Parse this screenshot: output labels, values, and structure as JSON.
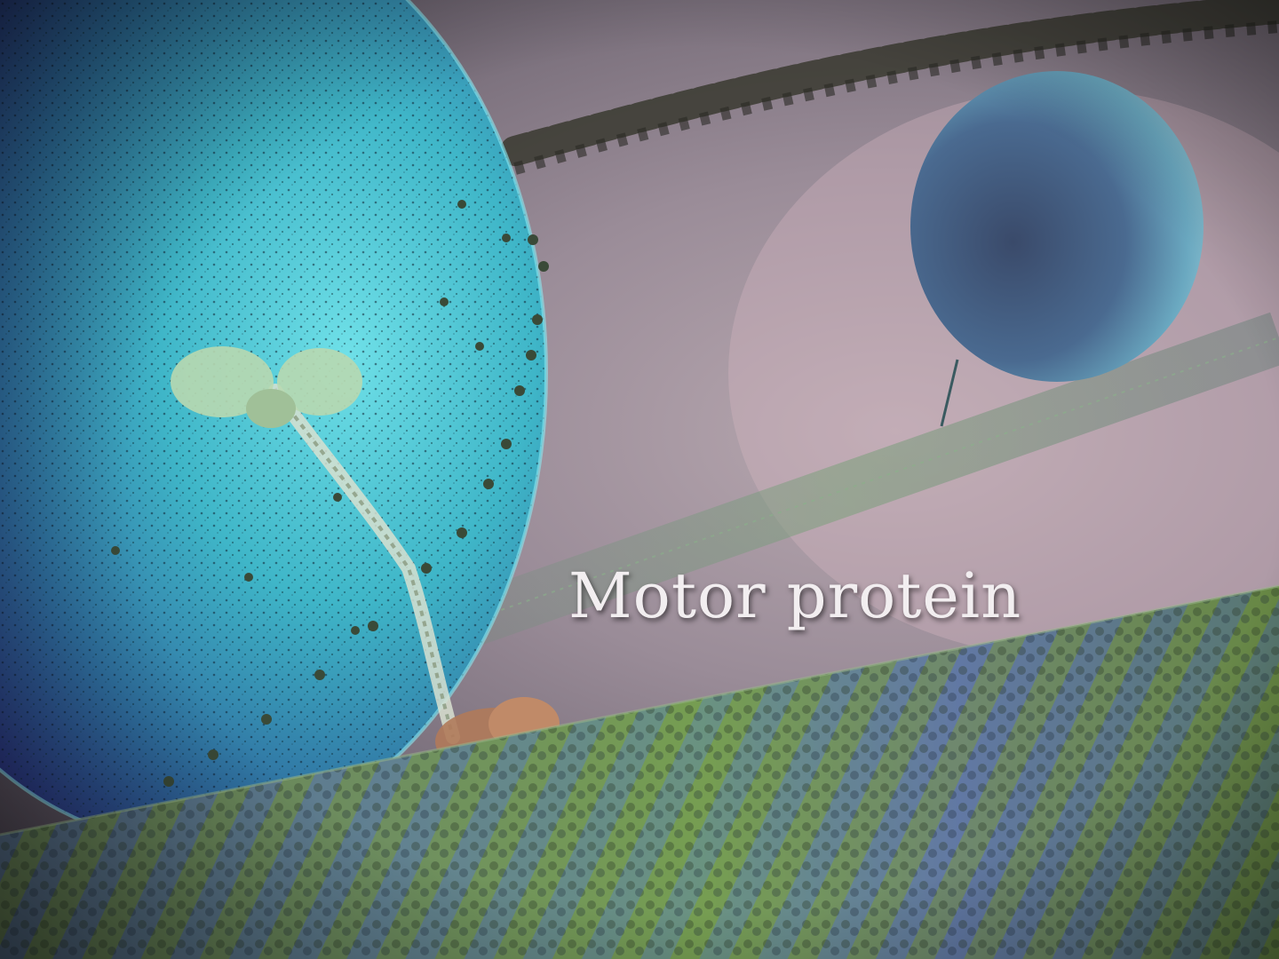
{
  "caption": {
    "text": "Motor protein",
    "color": "#f2eef0"
  },
  "palette": {
    "vesicle": "#3fb6c8",
    "vesicle_dark": "#2a2f7a",
    "background": "#b8a8b0",
    "microtubule_green": "#7fa04a",
    "microtubule_blue": "#6a8ab0",
    "motor_foot": "#b07a5a",
    "motor_head": "#b8d8b0",
    "organelle": "#5a8aa8",
    "actin_filament": "#3a3a30"
  }
}
